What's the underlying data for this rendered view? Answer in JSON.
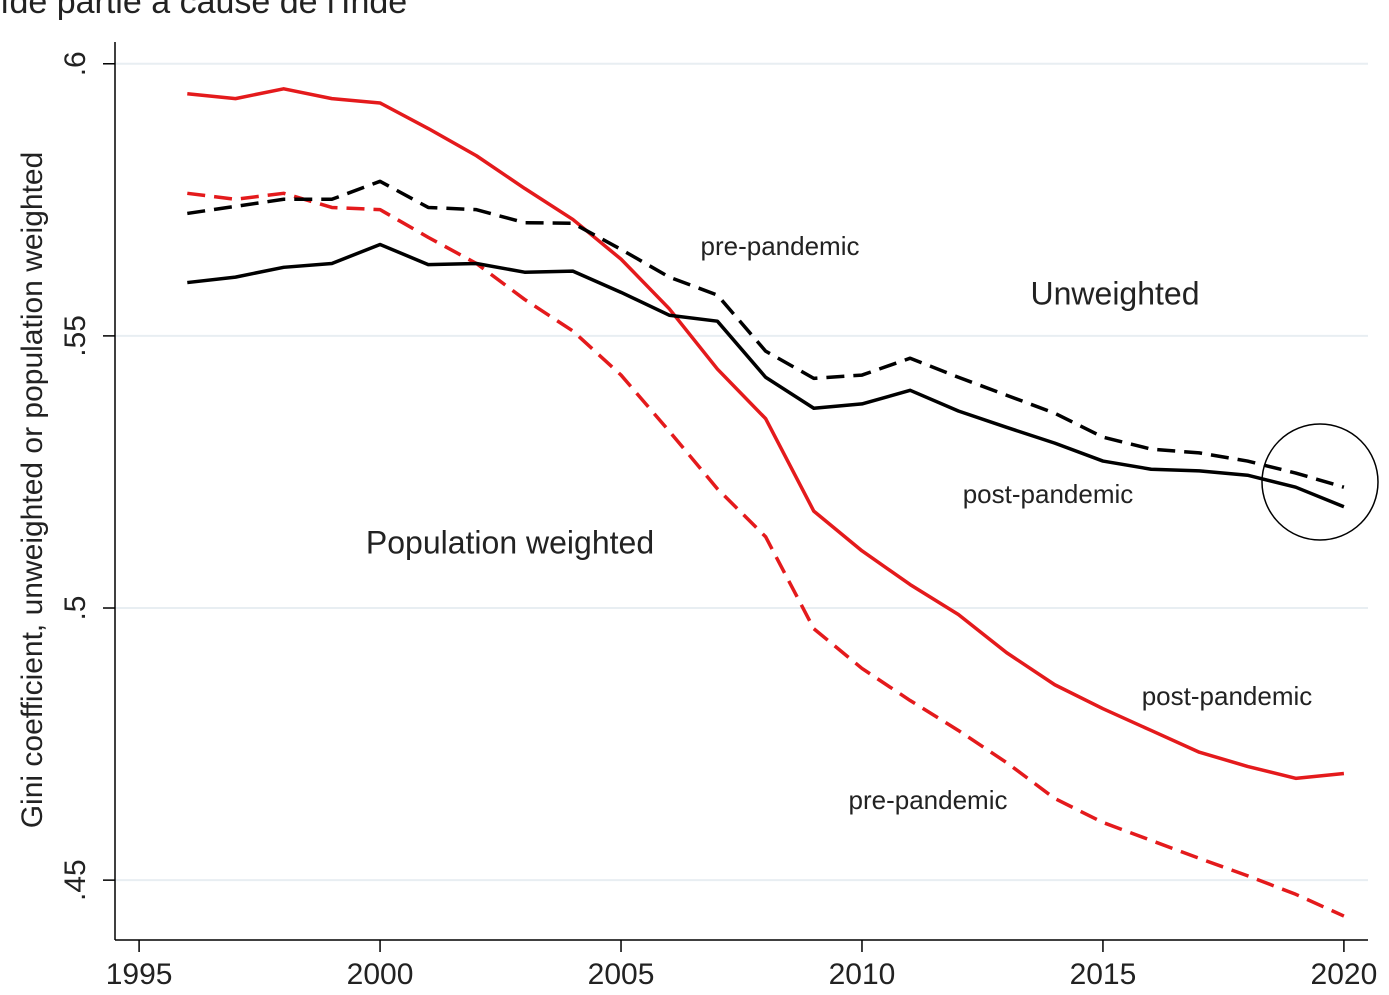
{
  "chart_data": {
    "type": "line",
    "title": "ıde partie à cause de l'Inde",
    "y_label": "Gini coefficient, unweighted or population weighted",
    "x": [
      1996,
      1997,
      1998,
      1999,
      2000,
      2001,
      2002,
      2003,
      2004,
      2005,
      2006,
      2007,
      2008,
      2009,
      2010,
      2011,
      2012,
      2013,
      2014,
      2015,
      2016,
      2017,
      2018,
      2019,
      2020
    ],
    "series": [
      {
        "color": "#e41a1c",
        "dashed": false,
        "values": [
          0.5945,
          0.5936,
          0.5954,
          0.5936,
          0.5928,
          0.5881,
          0.5831,
          0.5771,
          0.5714,
          0.5641,
          0.555,
          0.5439,
          0.5348,
          0.5178,
          0.5105,
          0.5043,
          0.4988,
          0.4918,
          0.4859,
          0.4815,
          0.4775,
          0.4735,
          0.4709,
          0.4687,
          0.4696
        ]
      },
      {
        "color": "#e41a1c",
        "dashed": true,
        "values": [
          0.5762,
          0.5751,
          0.5762,
          0.5736,
          0.5732,
          0.5681,
          0.5633,
          0.5567,
          0.5509,
          0.5428,
          0.5325,
          0.5219,
          0.5131,
          0.4962,
          0.4889,
          0.483,
          0.4775,
          0.4716,
          0.465,
          0.4606,
          0.4573,
          0.454,
          0.4508,
          0.4474,
          0.4434
        ]
      },
      {
        "color": "#000000",
        "dashed": true,
        "values": [
          0.5725,
          0.5738,
          0.5751,
          0.5751,
          0.5784,
          0.5736,
          0.5732,
          0.5708,
          0.5707,
          0.5659,
          0.5608,
          0.5575,
          0.5472,
          0.5422,
          0.5428,
          0.5459,
          0.5424,
          0.5391,
          0.5358,
          0.5314,
          0.5292,
          0.5285,
          0.527,
          0.5248,
          0.5222
        ]
      },
      {
        "color": "#000000",
        "dashed": false,
        "values": [
          0.5598,
          0.5608,
          0.5626,
          0.5633,
          0.5668,
          0.5631,
          0.5633,
          0.5617,
          0.5619,
          0.558,
          0.5538,
          0.5527,
          0.5424,
          0.5367,
          0.5375,
          0.54,
          0.5362,
          0.5332,
          0.5303,
          0.527,
          0.5255,
          0.5252,
          0.5244,
          0.5222,
          0.5186
        ]
      }
    ],
    "annotations": [
      "pre-pandemic",
      "Unweighted",
      "post-pandemic",
      "Population weighted",
      "post-pandemic",
      "pre-pandemic"
    ],
    "xlim": [
      1994.5,
      2020.5
    ],
    "xticks": [
      1995,
      2000,
      2005,
      2010,
      2015,
      2020
    ],
    "ylim": [
      0.439,
      0.604
    ],
    "yticks": [
      {
        "value": 0.45,
        "label": ".45"
      },
      {
        "value": 0.5,
        "label": ".5"
      },
      {
        "value": 0.55,
        "label": ".55"
      },
      {
        "value": 0.6,
        "label": ".6"
      }
    ],
    "grid": true
  }
}
